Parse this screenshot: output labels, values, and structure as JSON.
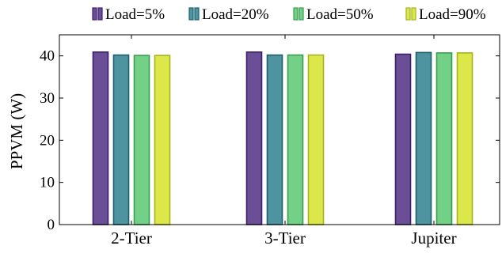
{
  "chart_data": {
    "type": "bar",
    "title": "",
    "xlabel": "",
    "ylabel": "PPVM (W)",
    "ylim": [
      0,
      45
    ],
    "yticks": [
      0,
      10,
      20,
      30,
      40
    ],
    "grid": false,
    "legend_position": "top",
    "categories": [
      "2-Tier",
      "3-Tier",
      "Jupiter"
    ],
    "series": [
      {
        "name": "Load=5%",
        "values": [
          40.9,
          40.9,
          40.4
        ],
        "fill": "#6a4f96",
        "stroke": "#3b1f6e"
      },
      {
        "name": "Load=20%",
        "values": [
          40.2,
          40.2,
          40.8
        ],
        "fill": "#4e93a0",
        "stroke": "#1f5f6c"
      },
      {
        "name": "Load=50%",
        "values": [
          40.1,
          40.2,
          40.7
        ],
        "fill": "#72d087",
        "stroke": "#3c9c50"
      },
      {
        "name": "Load=90%",
        "values": [
          40.1,
          40.2,
          40.7
        ],
        "fill": "#dce84a",
        "stroke": "#a6b21e"
      }
    ]
  }
}
